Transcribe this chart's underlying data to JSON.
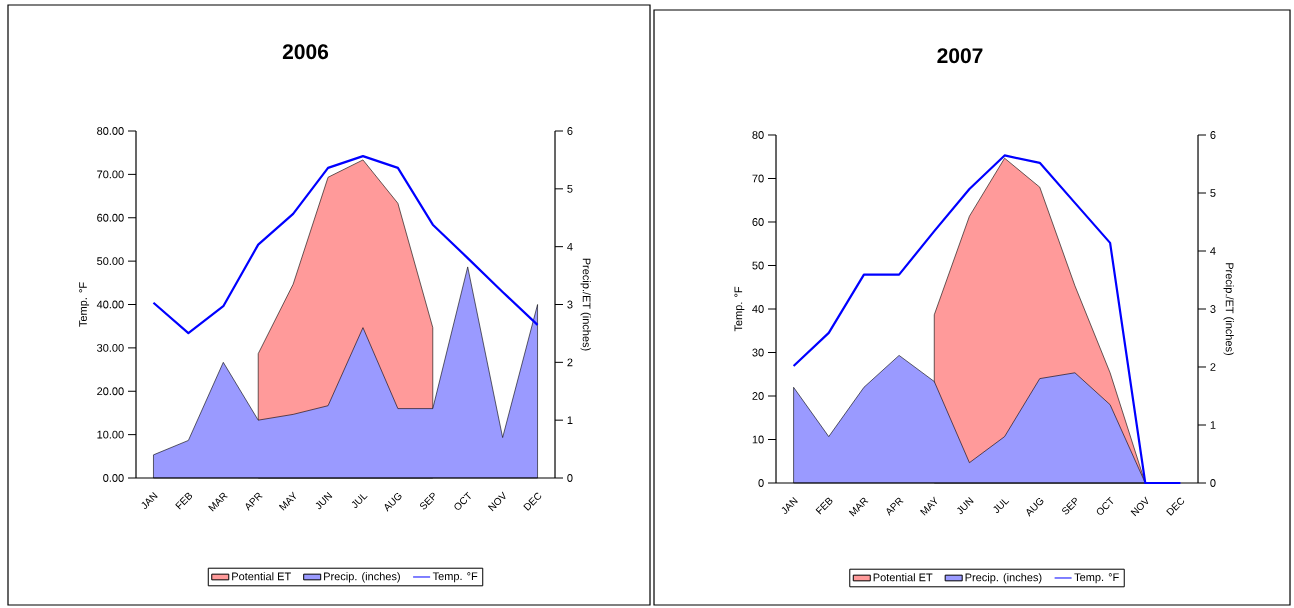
{
  "chart_data": [
    {
      "type": "area",
      "title": "2006",
      "ylabel": "Temp. °F",
      "y2label": "Precip./ET (inches)",
      "categories": [
        "JAN",
        "FEB",
        "MAR",
        "APR",
        "MAY",
        "JUN",
        "JUL",
        "AUG",
        "SEP",
        "OCT",
        "NOV",
        "DEC"
      ],
      "series": [
        {
          "name": "Potential ET",
          "axis": "y2",
          "color": "#ff9a9a",
          "values": [
            null,
            null,
            null,
            2.15,
            3.35,
            5.2,
            5.5,
            4.75,
            2.6,
            null,
            null,
            null
          ]
        },
        {
          "name": "Precip. (inches)",
          "axis": "y2",
          "color": "#9a9aff",
          "values": [
            0.4,
            0.65,
            2.0,
            1.0,
            1.1,
            1.25,
            2.6,
            1.2,
            1.2,
            3.65,
            0.7,
            3.0
          ]
        },
        {
          "name": "Temp. °F",
          "type": "line",
          "color": "#0000ff",
          "values": [
            40.4,
            33.4,
            39.6,
            53.8,
            60.9,
            71.5,
            74.2,
            71.5,
            58.4,
            50.7,
            42.9,
            35.3
          ]
        }
      ],
      "ylim": [
        0,
        80
      ],
      "yticks": [
        {
          "value": 0,
          "label": "0.00"
        },
        {
          "value": 10,
          "label": "10.00"
        },
        {
          "value": 20,
          "label": "20.00"
        },
        {
          "value": 30,
          "label": "30.00"
        },
        {
          "value": 40,
          "label": "40.00"
        },
        {
          "value": 50,
          "label": "50.00"
        },
        {
          "value": 60,
          "label": "60.00"
        },
        {
          "value": 70,
          "label": "70.00"
        },
        {
          "value": 80,
          "label": "80.00"
        }
      ],
      "y2lim": [
        0,
        6
      ],
      "y2ticks": [
        0,
        1,
        2,
        3,
        4,
        5,
        6
      ],
      "legend": "bottom"
    },
    {
      "type": "area",
      "title": "2007",
      "ylabel": "Temp. °F",
      "y2label": "Precip./ET (inches)",
      "categories": [
        "JAN",
        "FEB",
        "MAR",
        "APR",
        "MAY",
        "JUN",
        "JUL",
        "AUG",
        "SEP",
        "OCT",
        "NOV",
        "DEC"
      ],
      "series": [
        {
          "name": "Potential ET",
          "axis": "y2",
          "color": "#ff9a9a",
          "values": [
            null,
            null,
            null,
            null,
            2.9,
            4.6,
            5.6,
            5.1,
            3.4,
            1.9,
            0,
            null
          ]
        },
        {
          "name": "Precip. (inches)",
          "axis": "y2",
          "color": "#9a9aff",
          "values": [
            1.65,
            0.8,
            1.65,
            2.2,
            1.75,
            0.35,
            0.8,
            1.8,
            1.9,
            1.35,
            0,
            null
          ]
        },
        {
          "name": "Temp. °F",
          "type": "line",
          "color": "#0000ff",
          "values": [
            26.9,
            34.5,
            47.9,
            47.9,
            57.9,
            67.6,
            75.3,
            73.6,
            64.4,
            55.2,
            0,
            0
          ]
        }
      ],
      "ylim": [
        0,
        80
      ],
      "yticks": [
        0,
        10,
        20,
        30,
        40,
        50,
        60,
        70,
        80
      ],
      "y2lim": [
        0,
        6
      ],
      "y2ticks": [
        0,
        1,
        2,
        3,
        4,
        5,
        6
      ],
      "legend": "bottom"
    }
  ]
}
